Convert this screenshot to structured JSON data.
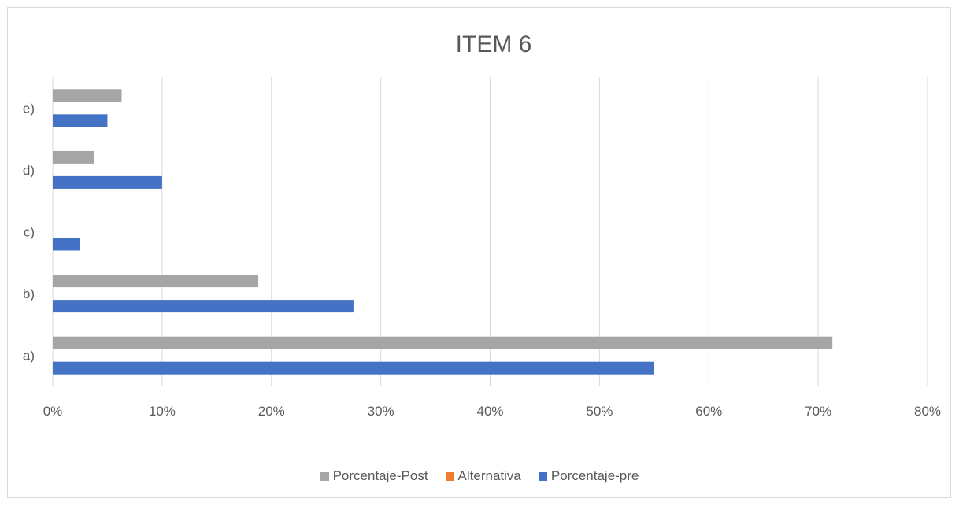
{
  "chart_data": {
    "type": "bar",
    "orientation": "horizontal",
    "title": "ITEM 6",
    "categories": [
      "a)",
      "b)",
      "c)",
      "d)",
      "e)"
    ],
    "series": [
      {
        "name": "Porcentaje-Post",
        "color": "#a5a5a5",
        "values": [
          0.713,
          0.188,
          0,
          0.038,
          0.063
        ]
      },
      {
        "name": "Alternativa",
        "color": "#ed7d31",
        "values": [
          0,
          0,
          0,
          0,
          0
        ]
      },
      {
        "name": "Porcentaje-pre",
        "color": "#4472c4",
        "values": [
          0.55,
          0.275,
          0.025,
          0.1,
          0.05
        ]
      }
    ],
    "xlim": [
      0,
      0.8
    ],
    "xticks": [
      "0%",
      "10%",
      "20%",
      "30%",
      "40%",
      "50%",
      "60%",
      "70%",
      "80%"
    ],
    "grid": true,
    "legend_position": "bottom"
  }
}
